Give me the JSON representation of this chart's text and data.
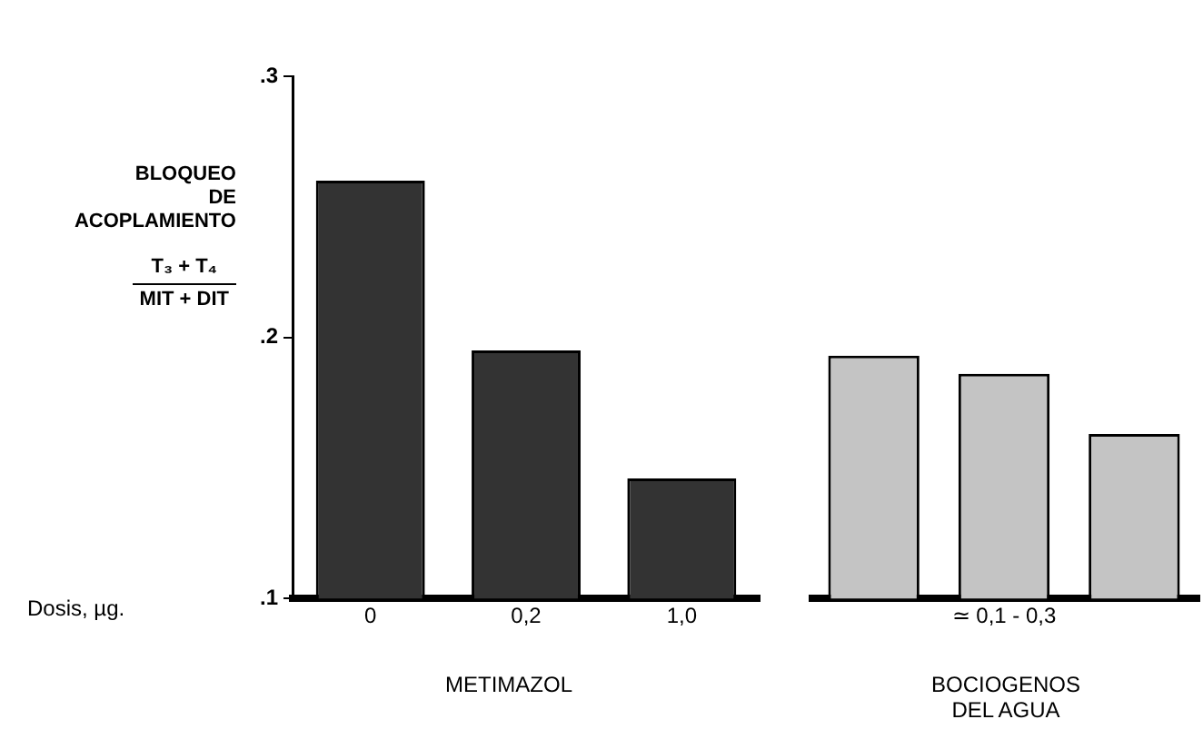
{
  "chart_data": [
    {
      "type": "bar",
      "ylabel": "BLOQUEO\nDE\nACOPLAMIENTO\nT₃ + T₄\nMIT + DIT",
      "xlabel": "METIMAZOL",
      "annotations": [
        "Dosis, µg."
      ],
      "categories": [
        "0",
        "0,2",
        "1,0"
      ],
      "values": [
        0.26,
        0.195,
        0.146
      ],
      "color": "#333333",
      "ylim": [
        0.1,
        0.3
      ],
      "yticks": [
        {
          "value": 0.1,
          "label": ".1"
        },
        {
          "value": 0.2,
          "label": ".2"
        },
        {
          "value": 0.3,
          "label": ".3"
        }
      ],
      "grid": false,
      "legend": false
    },
    {
      "type": "bar",
      "xlabel": "BOCIOGENOS\nDEL AGUA",
      "categories": [
        null,
        "≃ 0,1 - 0,3",
        null
      ],
      "values": [
        0.193,
        0.186,
        0.163
      ],
      "color": "#c4c4c4",
      "ylim": [
        0.1,
        0.3
      ],
      "tick_labels": "x",
      "grid": false,
      "legend": false
    }
  ]
}
